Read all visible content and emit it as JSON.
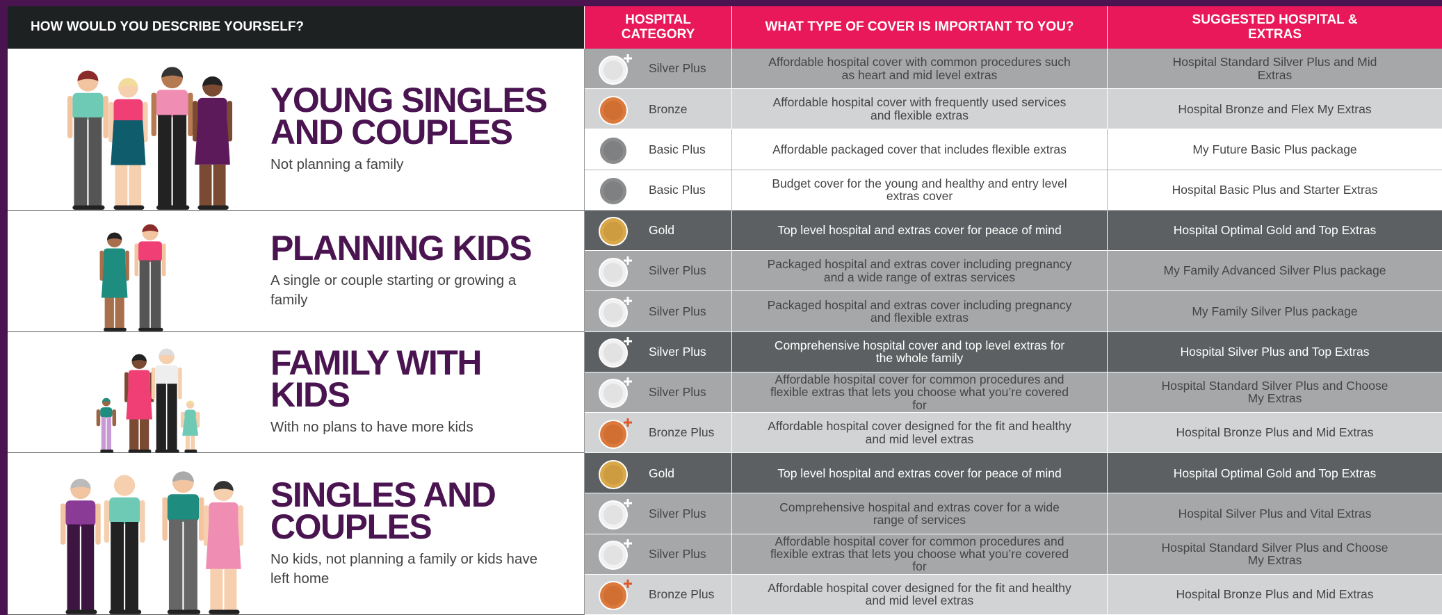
{
  "header": {
    "describe": "HOW WOULD YOU DESCRIBE YOURSELF?",
    "category": "HOSPITAL CATEGORY",
    "cover": "WHAT TYPE OF COVER IS IMPORTANT TO YOU?",
    "suggested": "SUGGESTED HOSPITAL & EXTRAS"
  },
  "groups": [
    {
      "title": "YOUNG SINGLES AND COUPLES",
      "subtitle": "Not planning a family",
      "rows": [
        {
          "category": "Silver Plus",
          "cover": "Affordable hospital cover with common procedures such as heart and mid level extras",
          "suggested": "Hospital Standard Silver Plus and Mid Extras"
        },
        {
          "category": "Bronze",
          "cover": "Affordable hospital cover with frequently used services and flexible extras",
          "suggested": "Hospital Bronze and Flex My Extras"
        },
        {
          "category": "Basic Plus",
          "cover": "Affordable packaged cover that includes flexible extras",
          "suggested": "My Future Basic Plus package"
        },
        {
          "category": "Basic Plus",
          "cover": "Budget cover for the young and healthy and entry level extras cover",
          "suggested": "Hospital Basic Plus and Starter Extras"
        }
      ]
    },
    {
      "title": "PLANNING KIDS",
      "subtitle": "A single or couple starting or growing a family",
      "rows": [
        {
          "category": "Gold",
          "cover": "Top level hospital and extras cover for peace of mind",
          "suggested": "Hospital Optimal Gold and Top Extras"
        },
        {
          "category": "Silver Plus",
          "cover": "Packaged hospital and extras cover including pregnancy and a wide range of extras services",
          "suggested": "My Family Advanced Silver Plus package"
        },
        {
          "category": "Silver Plus",
          "cover": "Packaged hospital and extras cover including pregnancy and flexible extras",
          "suggested": "My Family Silver Plus package"
        }
      ]
    },
    {
      "title": "FAMILY WITH KIDS",
      "subtitle": "With no plans to have more kids",
      "rows": [
        {
          "category": "Silver Plus",
          "cover": "Comprehensive hospital cover and top level extras for the whole family",
          "suggested": "Hospital Silver Plus and Top Extras"
        },
        {
          "category": "Silver Plus",
          "cover": "Affordable hospital cover for common procedures and flexible extras that lets you choose what you’re covered for",
          "suggested": "Hospital Standard Silver Plus and Choose My Extras"
        },
        {
          "category": "Bronze Plus",
          "cover": "Affordable hospital cover designed for the fit and healthy and mid level extras",
          "suggested": "Hospital Bronze Plus and Mid Extras"
        }
      ]
    },
    {
      "title": "SINGLES AND COUPLES",
      "subtitle": "No kids, not planning a family or kids have left home",
      "rows": [
        {
          "category": "Gold",
          "cover": "Top level hospital and extras cover for peace of mind",
          "suggested": "Hospital Optimal Gold and Top Extras"
        },
        {
          "category": "Silver Plus",
          "cover": "Comprehensive hospital and extras cover for a wide range of services",
          "suggested": "Hospital Silver Plus and Vital Extras"
        },
        {
          "category": "Silver Plus",
          "cover": "Affordable hospital cover for common procedures and flexible extras that lets you choose what you’re covered for",
          "suggested": "Hospital Standard Silver Plus and Choose My Extras"
        },
        {
          "category": "Bronze Plus",
          "cover": "Affordable hospital cover designed for the fit and healthy and mid level extras",
          "suggested": "Hospital Bronze Plus and Mid Extras"
        }
      ]
    }
  ]
}
